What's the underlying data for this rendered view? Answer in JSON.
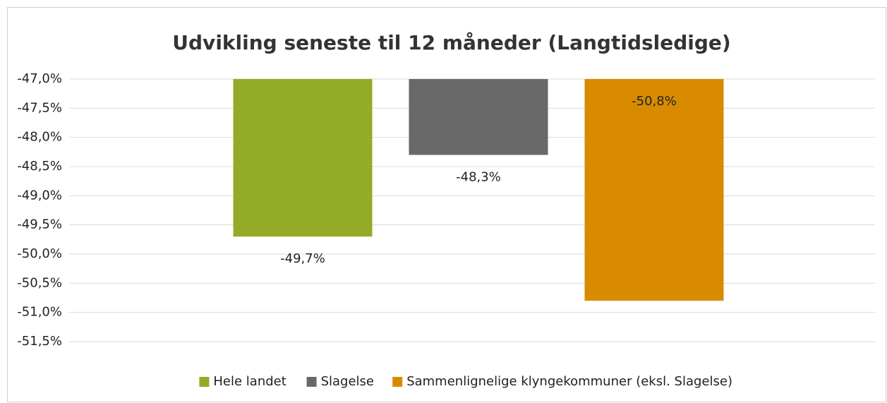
{
  "chart_data": {
    "type": "bar",
    "title": "Udvikling seneste til 12 måneder (Langtidsledige)",
    "series": [
      {
        "name": "Hele landet",
        "color": "#94ab28",
        "values": [
          -49.7
        ],
        "value_labels": [
          "-49,7%"
        ]
      },
      {
        "name": "Slagelse",
        "color": "#696969",
        "values": [
          -48.3
        ],
        "value_labels": [
          "-48,3%"
        ]
      },
      {
        "name": "Sammenlignelige klyngekommuner (eksl. Slagelse)",
        "color": "#d98b00",
        "values": [
          -50.8
        ],
        "value_labels": [
          "-50,8%"
        ]
      }
    ],
    "ylim": [
      -51.5,
      -47
    ],
    "yticks": [
      {
        "value": -47,
        "label": "-47,0%"
      },
      {
        "value": -47.5,
        "label": "-47,5%"
      },
      {
        "value": -48,
        "label": "-48,0%"
      },
      {
        "value": -48.5,
        "label": "-48,5%"
      },
      {
        "value": -49,
        "label": "-49,0%"
      },
      {
        "value": -49.5,
        "label": "-49,5%"
      },
      {
        "value": -50,
        "label": "-50,0%"
      },
      {
        "value": -50.5,
        "label": "-50,5%"
      },
      {
        "value": -51,
        "label": "-51,0%"
      },
      {
        "value": -51.5,
        "label": "-51,5%"
      }
    ],
    "grid": true,
    "legend": "bottom"
  }
}
